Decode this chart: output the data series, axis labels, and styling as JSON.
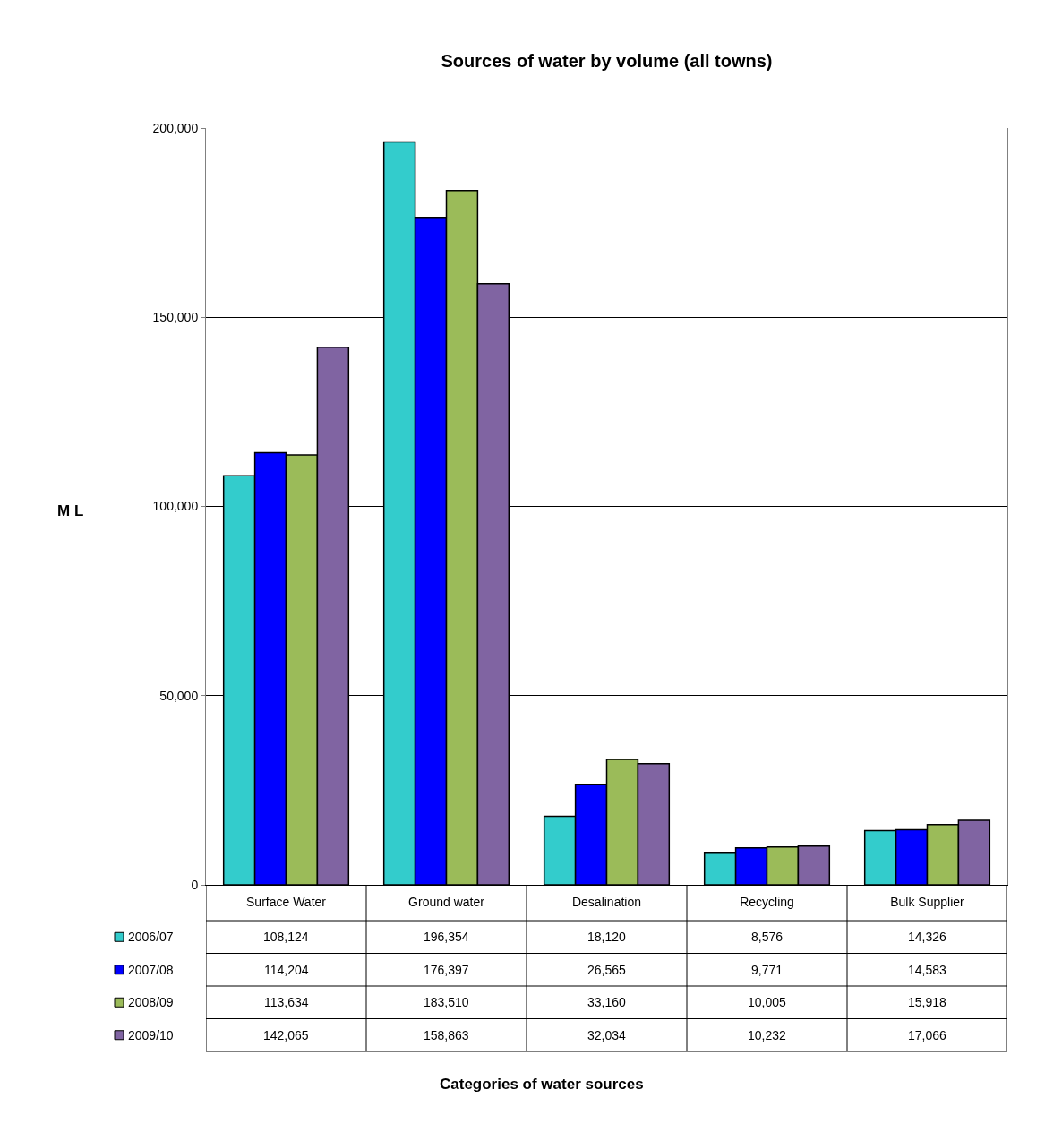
{
  "chart_data": {
    "type": "bar",
    "title": "Sources of water by volume (all towns)",
    "ylabel": "M L",
    "annotations": [
      "Categories of water sources"
    ],
    "categories": [
      "Surface Water",
      "Ground water",
      "Desalination",
      "Recycling",
      "Bulk Supplier"
    ],
    "series": [
      {
        "name": "2006/07",
        "color": "#33cccc",
        "values": [
          108124,
          196354,
          18120,
          8576,
          14326
        ],
        "value_labels": [
          "108,124",
          "196,354",
          "18,120",
          "8,576",
          "14,326"
        ]
      },
      {
        "name": "2007/08",
        "color": "#0000ff",
        "values": [
          114204,
          176397,
          26565,
          9771,
          14583
        ],
        "value_labels": [
          "114,204",
          "176,397",
          "26,565",
          "9,771",
          "14,583"
        ]
      },
      {
        "name": "2008/09",
        "color": "#9bbb59",
        "values": [
          113634,
          183510,
          33160,
          10005,
          15918
        ],
        "value_labels": [
          "113,634",
          "183,510",
          "33,160",
          "10,005",
          "15,918"
        ]
      },
      {
        "name": "2009/10",
        "color": "#8064a2",
        "values": [
          142065,
          158863,
          32034,
          10232,
          17066
        ],
        "value_labels": [
          "142,065",
          "158,863",
          "32,034",
          "10,232",
          "17,066"
        ]
      }
    ],
    "ylim": [
      0,
      200000
    ],
    "yticks": [
      0,
      {
        "value": 50000,
        "label": "50,000"
      },
      {
        "value": 100000,
        "label": "100,000"
      },
      {
        "value": 150000,
        "label": "150,000"
      },
      {
        "value": 200000,
        "label": "200,000"
      }
    ],
    "grid": "y",
    "legend": "bottom left"
  }
}
